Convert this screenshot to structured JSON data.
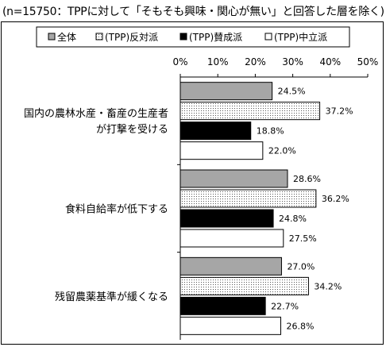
{
  "title": "(n=15750：TPPに対して「そもそも興味・関心が無い」と回答した層を除く)",
  "chart_data": {
    "type": "bar",
    "orientation": "horizontal",
    "title": "(n=15750：TPPに対して「そもそも興味・関心が無い」と回答した層を除く)",
    "xlim": [
      0,
      50
    ],
    "ticks": [
      0,
      10,
      20,
      30,
      40,
      50
    ],
    "tick_labels": [
      "0%",
      "10%",
      "20%",
      "30%",
      "40%",
      "50%"
    ],
    "categories": [
      [
        "国内の農林水産・畜産の生産者",
        "が打撃を受ける"
      ],
      [
        "食料自給率が低下する"
      ],
      [
        "残留農薬基準が緩くなる"
      ]
    ],
    "series": [
      {
        "name": "全体",
        "values": [
          24.5,
          28.6,
          27.0
        ],
        "labels": [
          "24.5%",
          "28.6%",
          "27.0%"
        ],
        "fill": "gray",
        "color": "#a6a6a6"
      },
      {
        "name": "(TPP)反対派",
        "values": [
          37.2,
          36.2,
          34.2
        ],
        "labels": [
          "37.2%",
          "36.2%",
          "34.2%"
        ],
        "fill": "dots",
        "color": "#ffffff"
      },
      {
        "name": "(TPP)賛成派",
        "values": [
          18.8,
          24.8,
          22.7
        ],
        "labels": [
          "18.8%",
          "24.8%",
          "22.7%"
        ],
        "fill": "black",
        "color": "#000000"
      },
      {
        "name": "(TPP)中立派",
        "values": [
          22.0,
          27.5,
          26.8
        ],
        "labels": [
          "22.0%",
          "27.5%",
          "26.8%"
        ],
        "fill": "white",
        "color": "#ffffff"
      }
    ],
    "legend": "top",
    "grid": false
  }
}
